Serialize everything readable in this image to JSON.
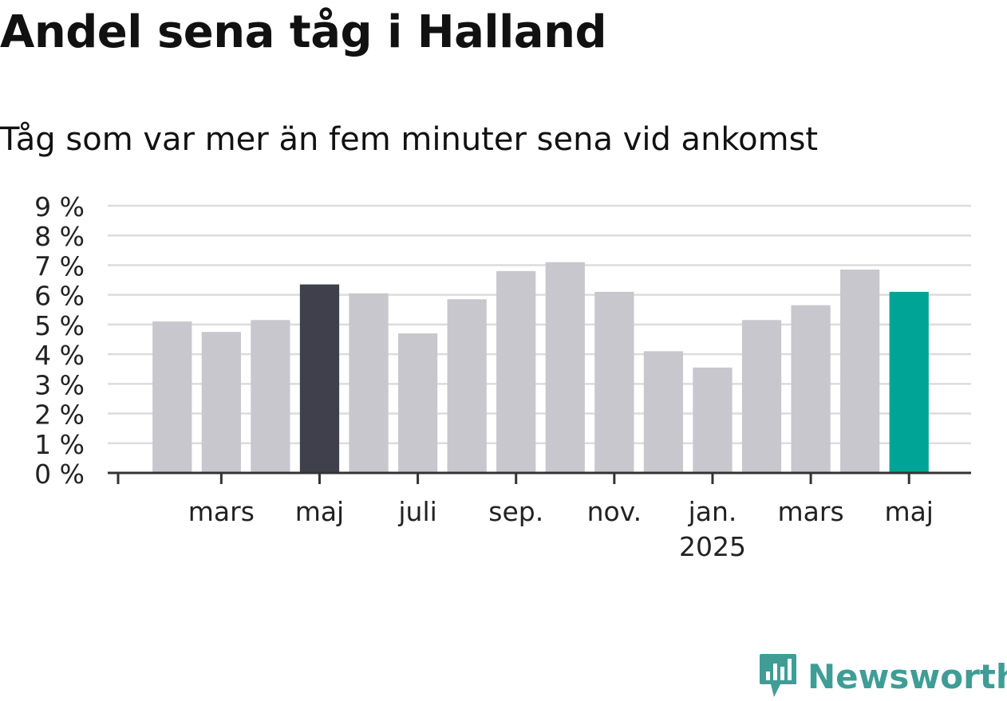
{
  "title": "Andel sena tåg i Halland",
  "subtitle": "Tåg som var mer än fem minuter sena vid ankomst",
  "brand": {
    "name": "Newsworthy",
    "icon": "newsworthy-logo-icon"
  },
  "colors": {
    "bar": "#c8c7cd",
    "highlight_previous": "#403f4c",
    "highlight_current": "#00a496",
    "grid": "#dcdcdc",
    "axis": "#333333",
    "text": "#111111",
    "brand": "#3f9d96"
  },
  "chart_data": {
    "type": "bar",
    "title": "Andel sena tåg i Halland",
    "subtitle": "Tåg som var mer än fem minuter sena vid ankomst",
    "xlabel": "",
    "ylabel": "",
    "ylim": [
      0,
      9
    ],
    "yticks": [
      0,
      1,
      2,
      3,
      4,
      5,
      6,
      7,
      8,
      9
    ],
    "ytick_labels": [
      "0 %",
      "1 %",
      "2 %",
      "3 %",
      "4 %",
      "5 %",
      "6 %",
      "7 %",
      "8 %",
      "9 %"
    ],
    "categories": [
      "2024-02",
      "2024-03",
      "2024-04",
      "2024-05",
      "2024-06",
      "2024-07",
      "2024-08",
      "2024-09",
      "2024-10",
      "2024-11",
      "2024-12",
      "2025-01",
      "2025-02",
      "2025-03",
      "2025-04",
      "2025-05"
    ],
    "values": [
      5.1,
      4.75,
      5.15,
      6.35,
      6.05,
      4.7,
      5.85,
      6.8,
      7.1,
      6.1,
      4.1,
      3.55,
      5.15,
      5.65,
      6.85,
      6.1
    ],
    "highlight": {
      "2024-05": "highlight_previous",
      "2025-05": "highlight_current"
    },
    "x_tick_labels": [
      {
        "category": "2024-03",
        "label": "mars"
      },
      {
        "category": "2024-05",
        "label": "maj"
      },
      {
        "category": "2024-07",
        "label": "juli"
      },
      {
        "category": "2024-09",
        "label": "sep."
      },
      {
        "category": "2024-11",
        "label": "nov."
      },
      {
        "category": "2025-01",
        "label": "jan.",
        "sublabel": "2025"
      },
      {
        "category": "2025-03",
        "label": "mars"
      },
      {
        "category": "2025-05",
        "label": "maj"
      }
    ],
    "grid": true,
    "legend": "none"
  }
}
